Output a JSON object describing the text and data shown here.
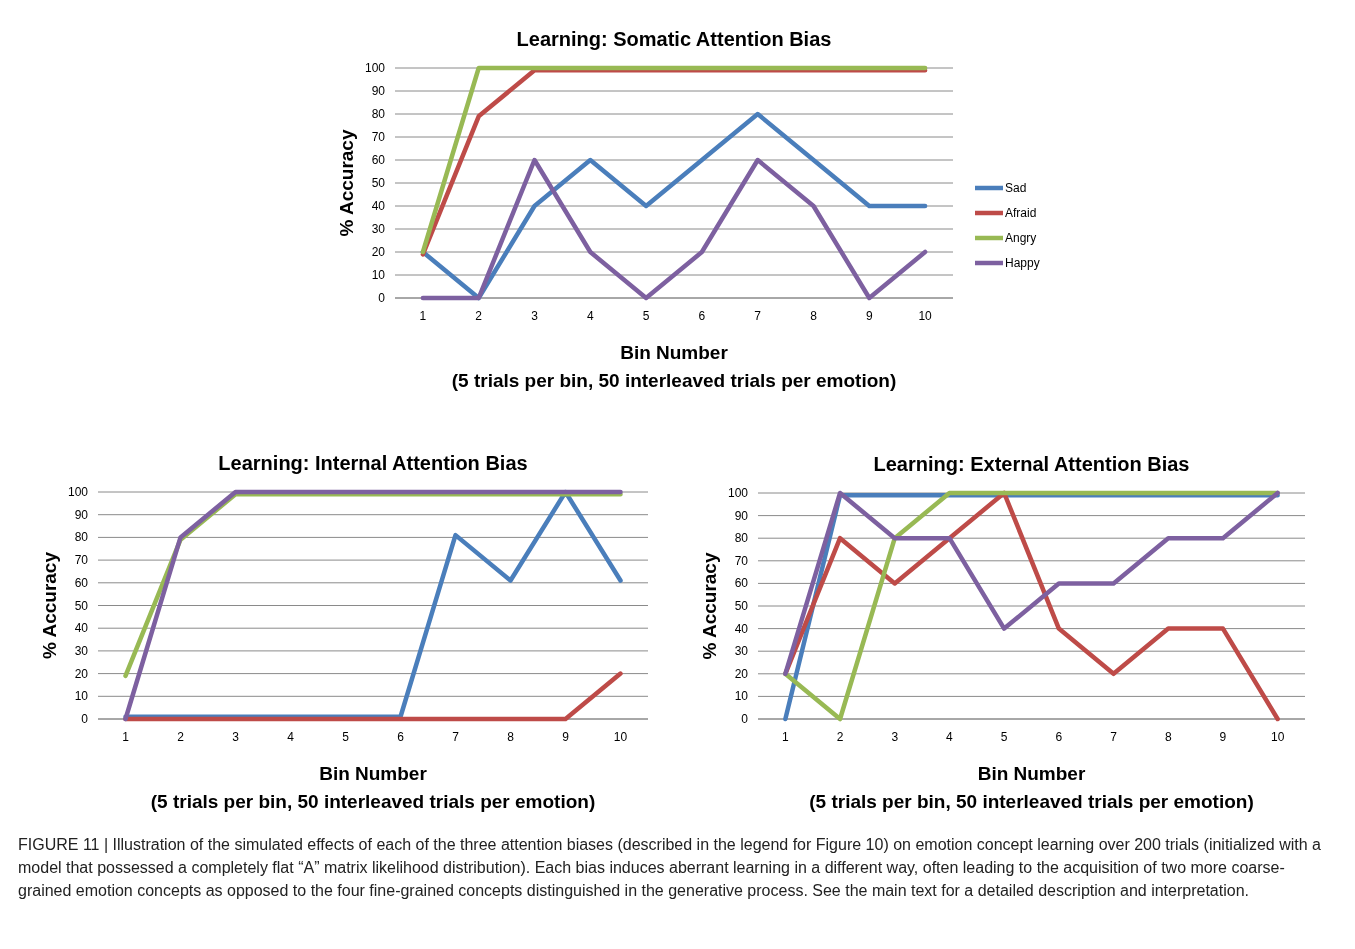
{
  "chart_data": [
    {
      "type": "line",
      "title": "Learning: Somatic Attention Bias",
      "xlabel": "Bin Number",
      "ylabel": "% Accuracy",
      "annotations": [
        "(5 trials per bin, 50 interleaved trials per emotion)"
      ],
      "categories": [
        "1",
        "2",
        "3",
        "4",
        "5",
        "6",
        "7",
        "8",
        "9",
        "10"
      ],
      "ylim": [
        0,
        100
      ],
      "yticks": [
        0,
        10,
        20,
        30,
        40,
        50,
        60,
        70,
        80,
        90,
        100
      ],
      "grid": "y",
      "legend": "right",
      "marker": "none",
      "line_style": "solid",
      "series": [
        {
          "name": "Sad",
          "color": "#4a7ebb",
          "values": [
            20,
            0,
            40,
            60,
            40,
            60,
            80,
            60,
            40,
            40
          ]
        },
        {
          "name": "Afraid",
          "color": "#be4b48",
          "values": [
            19,
            79,
            99,
            99,
            99,
            99,
            99,
            99,
            99,
            99
          ]
        },
        {
          "name": "Angry",
          "color": "#98b954",
          "values": [
            20,
            100,
            100,
            100,
            100,
            100,
            100,
            100,
            100,
            100
          ]
        },
        {
          "name": "Happy",
          "color": "#7d60a0",
          "values": [
            0,
            0,
            60,
            20,
            0,
            20,
            60,
            40,
            0,
            20
          ]
        }
      ]
    },
    {
      "type": "line",
      "title": "Learning: Internal Attention Bias",
      "xlabel": "Bin Number",
      "ylabel": "% Accuracy",
      "annotations": [
        "(5 trials per bin, 50 interleaved trials per emotion)"
      ],
      "categories": [
        "1",
        "2",
        "3",
        "4",
        "5",
        "6",
        "7",
        "8",
        "9",
        "10"
      ],
      "ylim": [
        0,
        100
      ],
      "yticks": [
        0,
        10,
        20,
        30,
        40,
        50,
        60,
        70,
        80,
        90,
        100
      ],
      "grid": "y",
      "marker": "none",
      "line_style": "solid",
      "series": [
        {
          "color": "#4a7ebb",
          "values": [
            1,
            1,
            1,
            1,
            1,
            1,
            81,
            61,
            100,
            61
          ]
        },
        {
          "color": "#be4b48",
          "values": [
            0,
            0,
            0,
            0,
            0,
            0,
            0,
            0,
            0,
            20
          ]
        },
        {
          "color": "#98b954",
          "values": [
            19,
            79,
            99,
            99,
            99,
            99,
            99,
            99,
            99,
            99
          ]
        },
        {
          "color": "#7d60a0",
          "values": [
            0,
            80,
            100,
            100,
            100,
            100,
            100,
            100,
            100,
            100
          ]
        }
      ]
    },
    {
      "type": "line",
      "title": "Learning: External Attention Bias",
      "xlabel": "Bin Number",
      "ylabel": "% Accuracy",
      "annotations": [
        "(5 trials per bin, 50 interleaved trials per emotion)",
        "FIGURE 11 | Illustration of the simulated effects of each of the three attention biases (described in the legend for Figure 10) on emotion concept learning over 200 trials (initialized with a model that possessed a completely flat “A” matrix likelihood distribution). Each bias induces aberrant learning in a different way, often leading to the acquisition of two more coarse-grained emotion concepts as opposed to the four fine-grained concepts distinguished in the generative process. See the main text for a detailed description and interpretation."
      ],
      "categories": [
        "1",
        "2",
        "3",
        "4",
        "5",
        "6",
        "7",
        "8",
        "9",
        "10"
      ],
      "ylim": [
        0,
        100
      ],
      "yticks": [
        0,
        10,
        20,
        30,
        40,
        50,
        60,
        70,
        80,
        90,
        100
      ],
      "grid": "y",
      "marker": "none",
      "line_style": "solid",
      "series": [
        {
          "color": "#4a7ebb",
          "values": [
            0,
            99,
            99,
            99,
            99,
            99,
            99,
            99,
            99,
            99
          ]
        },
        {
          "color": "#be4b48",
          "values": [
            20,
            80,
            60,
            80,
            100,
            40,
            20,
            40,
            40,
            0
          ]
        },
        {
          "color": "#98b954",
          "values": [
            20,
            0,
            80,
            100,
            100,
            100,
            100,
            100,
            100,
            100
          ]
        },
        {
          "color": "#7d60a0",
          "values": [
            20,
            100,
            80,
            80,
            40,
            60,
            60,
            80,
            80,
            100
          ]
        }
      ]
    }
  ]
}
